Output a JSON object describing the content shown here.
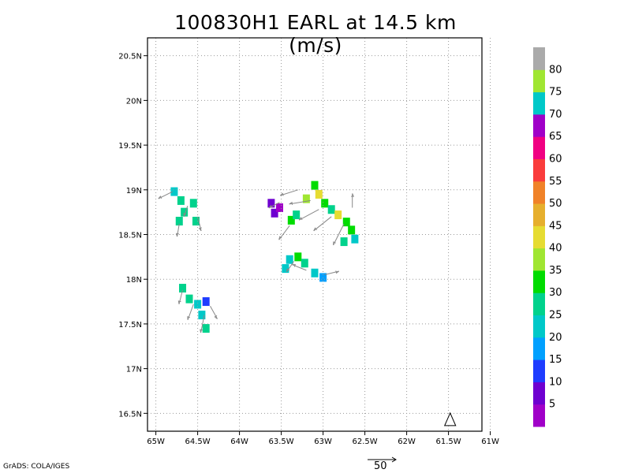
{
  "title": "100830H1 EARL at 14.5 km (m/s)",
  "credit": "GrADS: COLA/IGES",
  "reference_vector_label": "50",
  "map": {
    "lon_range": [
      -65.1,
      -61.1
    ],
    "lat_range": [
      16.3,
      20.7
    ],
    "x_ticks": [
      {
        "value": -65,
        "label": "65W"
      },
      {
        "value": -64.5,
        "label": "64.5W"
      },
      {
        "value": -64,
        "label": "64W"
      },
      {
        "value": -63.5,
        "label": "63.5W"
      },
      {
        "value": -63,
        "label": "63W"
      },
      {
        "value": -62.5,
        "label": "62.5W"
      },
      {
        "value": -62,
        "label": "62W"
      },
      {
        "value": -61.5,
        "label": "61.5W"
      },
      {
        "value": -61,
        "label": "61W"
      }
    ],
    "y_ticks": [
      {
        "value": 16.5,
        "label": "16.5N"
      },
      {
        "value": 17,
        "label": "17N"
      },
      {
        "value": 17.5,
        "label": "17.5N"
      },
      {
        "value": 18,
        "label": "18N"
      },
      {
        "value": 18.5,
        "label": "18.5N"
      },
      {
        "value": 19,
        "label": "19N"
      },
      {
        "value": 19.5,
        "label": "19.5N"
      },
      {
        "value": 20,
        "label": "20N"
      },
      {
        "value": 20.5,
        "label": "20.5N"
      }
    ],
    "storm_marker": {
      "lon": -61.48,
      "lat": 16.38,
      "shape": "triangle"
    },
    "wind_cells": [
      {
        "lon": -64.78,
        "lat": 18.98,
        "speed": 24
      },
      {
        "lon": -64.7,
        "lat": 18.88,
        "speed": 25
      },
      {
        "lon": -64.66,
        "lat": 18.75,
        "speed": 28
      },
      {
        "lon": -64.55,
        "lat": 18.85,
        "speed": 26
      },
      {
        "lon": -64.52,
        "lat": 18.65,
        "speed": 29
      },
      {
        "lon": -64.72,
        "lat": 18.65,
        "speed": 27
      },
      {
        "lon": -63.62,
        "lat": 18.85,
        "speed": 5
      },
      {
        "lon": -63.58,
        "lat": 18.74,
        "speed": 6
      },
      {
        "lon": -63.52,
        "lat": 18.8,
        "speed": 4
      },
      {
        "lon": -63.38,
        "lat": 18.66,
        "speed": 33
      },
      {
        "lon": -63.32,
        "lat": 18.72,
        "speed": 29
      },
      {
        "lon": -63.2,
        "lat": 18.9,
        "speed": 36
      },
      {
        "lon": -63.1,
        "lat": 19.05,
        "speed": 33
      },
      {
        "lon": -63.05,
        "lat": 18.95,
        "speed": 40
      },
      {
        "lon": -62.98,
        "lat": 18.85,
        "speed": 34
      },
      {
        "lon": -62.9,
        "lat": 18.78,
        "speed": 27
      },
      {
        "lon": -62.82,
        "lat": 18.72,
        "speed": 40
      },
      {
        "lon": -62.72,
        "lat": 18.64,
        "speed": 31
      },
      {
        "lon": -62.66,
        "lat": 18.55,
        "speed": 34
      },
      {
        "lon": -62.62,
        "lat": 18.45,
        "speed": 22
      },
      {
        "lon": -62.75,
        "lat": 18.42,
        "speed": 28
      },
      {
        "lon": -63.4,
        "lat": 18.22,
        "speed": 22
      },
      {
        "lon": -63.3,
        "lat": 18.25,
        "speed": 30
      },
      {
        "lon": -63.22,
        "lat": 18.18,
        "speed": 26
      },
      {
        "lon": -63.1,
        "lat": 18.07,
        "speed": 21
      },
      {
        "lon": -63.0,
        "lat": 18.02,
        "speed": 19
      },
      {
        "lon": -63.45,
        "lat": 18.12,
        "speed": 20
      },
      {
        "lon": -64.68,
        "lat": 17.9,
        "speed": 29
      },
      {
        "lon": -64.6,
        "lat": 17.78,
        "speed": 25
      },
      {
        "lon": -64.5,
        "lat": 17.72,
        "speed": 22
      },
      {
        "lon": -64.4,
        "lat": 17.75,
        "speed": 12
      },
      {
        "lon": -64.45,
        "lat": 17.6,
        "speed": 24
      },
      {
        "lon": -64.4,
        "lat": 17.45,
        "speed": 27
      }
    ],
    "vectors": [
      {
        "lon": -64.8,
        "lat": 18.98,
        "u": -20,
        "v": -10
      },
      {
        "lon": -64.62,
        "lat": 18.82,
        "u": -5,
        "v": -15
      },
      {
        "lon": -64.5,
        "lat": 18.7,
        "u": 5,
        "v": -20
      },
      {
        "lon": -64.72,
        "lat": 18.62,
        "u": -3,
        "v": -18
      },
      {
        "lon": -63.52,
        "lat": 18.86,
        "u": -15,
        "v": -8
      },
      {
        "lon": -63.3,
        "lat": 19.0,
        "u": -25,
        "v": -8
      },
      {
        "lon": -63.15,
        "lat": 18.88,
        "u": -30,
        "v": -5
      },
      {
        "lon": -63.05,
        "lat": 18.78,
        "u": -28,
        "v": -15
      },
      {
        "lon": -62.9,
        "lat": 18.7,
        "u": -25,
        "v": -20
      },
      {
        "lon": -62.75,
        "lat": 18.62,
        "u": -15,
        "v": -30
      },
      {
        "lon": -62.65,
        "lat": 18.8,
        "u": 0,
        "v": 20
      },
      {
        "lon": -63.4,
        "lat": 18.6,
        "u": -15,
        "v": -20
      },
      {
        "lon": -63.35,
        "lat": 18.2,
        "u": -10,
        "v": -15
      },
      {
        "lon": -63.2,
        "lat": 18.1,
        "u": -20,
        "v": 8
      },
      {
        "lon": -62.98,
        "lat": 18.05,
        "u": 20,
        "v": 5
      },
      {
        "lon": -64.68,
        "lat": 17.88,
        "u": -5,
        "v": -20
      },
      {
        "lon": -64.55,
        "lat": 17.72,
        "u": -8,
        "v": -22
      },
      {
        "lon": -64.42,
        "lat": 17.6,
        "u": -5,
        "v": -25
      },
      {
        "lon": -64.35,
        "lat": 17.7,
        "u": 10,
        "v": -18
      }
    ]
  },
  "colorbar": {
    "levels": [
      {
        "color": "#a000c8",
        "label": "5"
      },
      {
        "color": "#6e00d0",
        "label": "10"
      },
      {
        "color": "#1e3cff",
        "label": "15"
      },
      {
        "color": "#00a0ff",
        "label": "20"
      },
      {
        "color": "#00c8c8",
        "label": "25"
      },
      {
        "color": "#00d28c",
        "label": "30"
      },
      {
        "color": "#00dc00",
        "label": "35"
      },
      {
        "color": "#a0e632",
        "label": "40"
      },
      {
        "color": "#e6dc32",
        "label": "45"
      },
      {
        "color": "#e6af2d",
        "label": "50"
      },
      {
        "color": "#f08228",
        "label": "55"
      },
      {
        "color": "#fa3c3c",
        "label": "60"
      },
      {
        "color": "#f00082",
        "label": "65"
      },
      {
        "color": "#a000c8",
        "label": "70"
      },
      {
        "color": "#00c8c8",
        "label": "75"
      },
      {
        "color": "#a0e632",
        "label": "80"
      },
      {
        "color": "#aaaaaa",
        "label": ""
      }
    ]
  }
}
